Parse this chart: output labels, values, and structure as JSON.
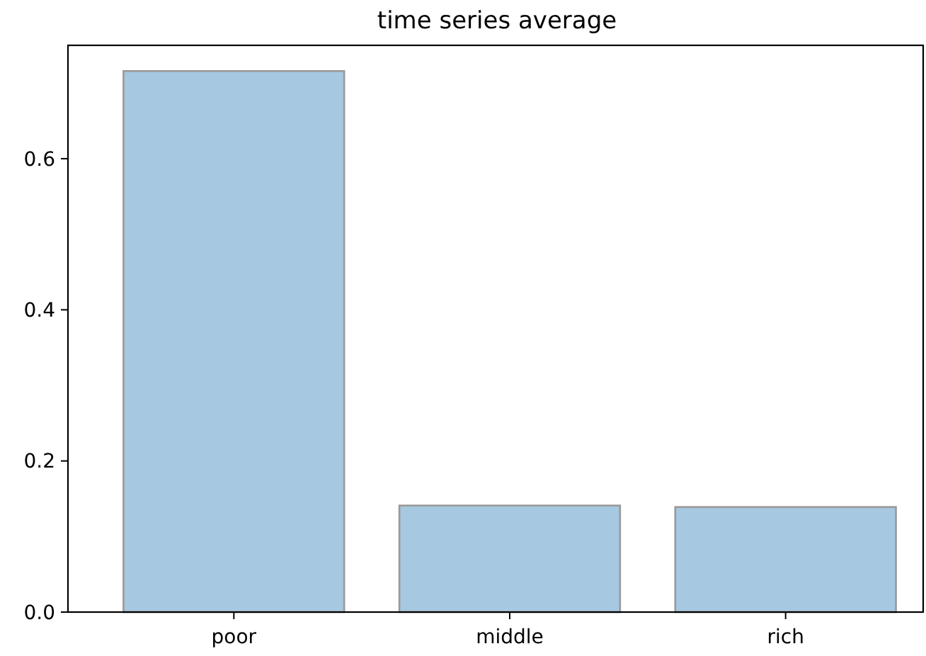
{
  "chart_data": {
    "type": "bar",
    "title": "time series average",
    "categories": [
      "poor",
      "middle",
      "rich"
    ],
    "values": [
      0.716,
      0.141,
      0.139
    ],
    "color": "#a6c8e0",
    "ylim": [
      0,
      0.75
    ],
    "yticks": [
      {
        "value": 0,
        "label": "0.0"
      },
      {
        "value": 0.2,
        "label": "0.2"
      },
      {
        "value": 0.4,
        "label": "0.4"
      },
      {
        "value": 0.6,
        "label": "0.6"
      }
    ],
    "grid": false
  }
}
